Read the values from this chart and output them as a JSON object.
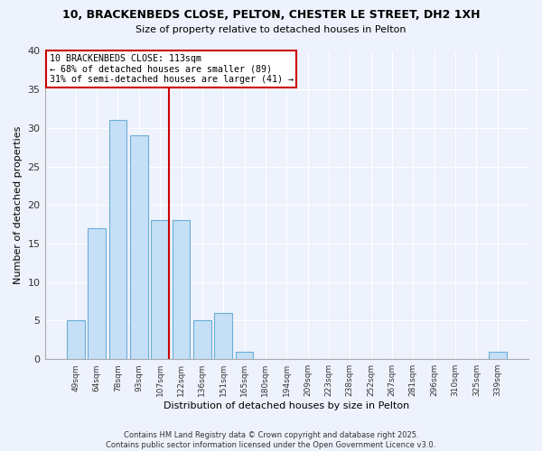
{
  "title": "10, BRACKENBEDS CLOSE, PELTON, CHESTER LE STREET, DH2 1XH",
  "subtitle": "Size of property relative to detached houses in Pelton",
  "xlabel": "Distribution of detached houses by size in Pelton",
  "ylabel": "Number of detached properties",
  "bin_labels": [
    "49sqm",
    "64sqm",
    "78sqm",
    "93sqm",
    "107sqm",
    "122sqm",
    "136sqm",
    "151sqm",
    "165sqm",
    "180sqm",
    "194sqm",
    "209sqm",
    "223sqm",
    "238sqm",
    "252sqm",
    "267sqm",
    "281sqm",
    "296sqm",
    "310sqm",
    "325sqm",
    "339sqm"
  ],
  "bar_values": [
    5,
    17,
    31,
    29,
    18,
    18,
    5,
    6,
    1,
    0,
    0,
    0,
    0,
    0,
    0,
    0,
    0,
    0,
    0,
    0,
    1
  ],
  "bar_color": "#c5dff7",
  "bar_edge_color": "#6baed6",
  "vline_x_index": 4.4,
  "annotation_text_line1": "10 BRACKENBEDS CLOSE: 113sqm",
  "annotation_text_line2": "← 68% of detached houses are smaller (89)",
  "annotation_text_line3": "31% of semi-detached houses are larger (41) →",
  "annotation_box_color": "white",
  "annotation_box_edge_color": "#cc0000",
  "vline_color": "#cc0000",
  "ylim": [
    0,
    40
  ],
  "background_color": "#eef2fc",
  "grid_color": "white",
  "footer": "Contains HM Land Registry data © Crown copyright and database right 2025.\nContains public sector information licensed under the Open Government Licence v3.0."
}
